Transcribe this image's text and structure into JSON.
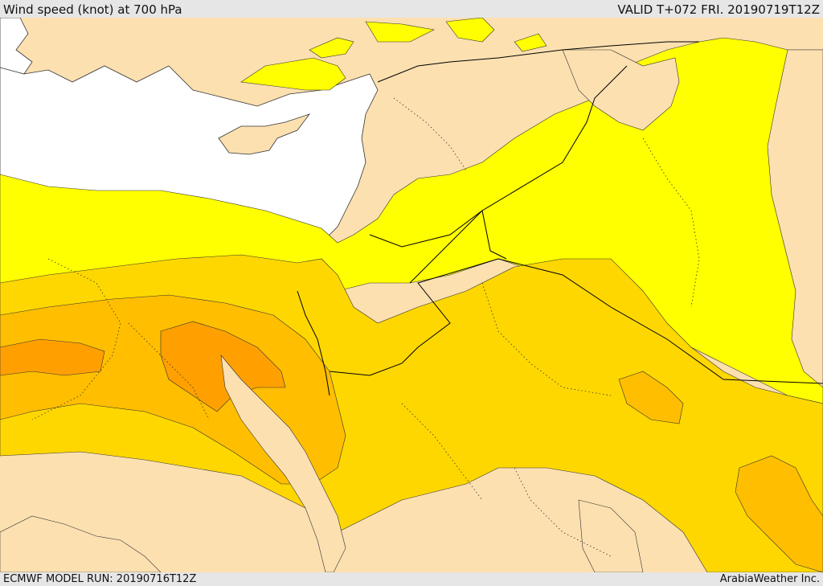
{
  "header": {
    "title": "Wind speed (knot) at 700 hPa",
    "valid_time": "VALID T+072 FRI. 20190719T12Z"
  },
  "footer": {
    "model_run": "ECMWF MODEL RUN: 20190716T12Z",
    "credit": "ArabiaWeather Inc."
  },
  "colors": {
    "sea": "#ffffff",
    "land": "#fde0b0",
    "band1": "#ffff00",
    "band2": "#ffd700",
    "band3": "#ffbe00",
    "band4": "#ffa000",
    "band5": "#ff9000"
  }
}
